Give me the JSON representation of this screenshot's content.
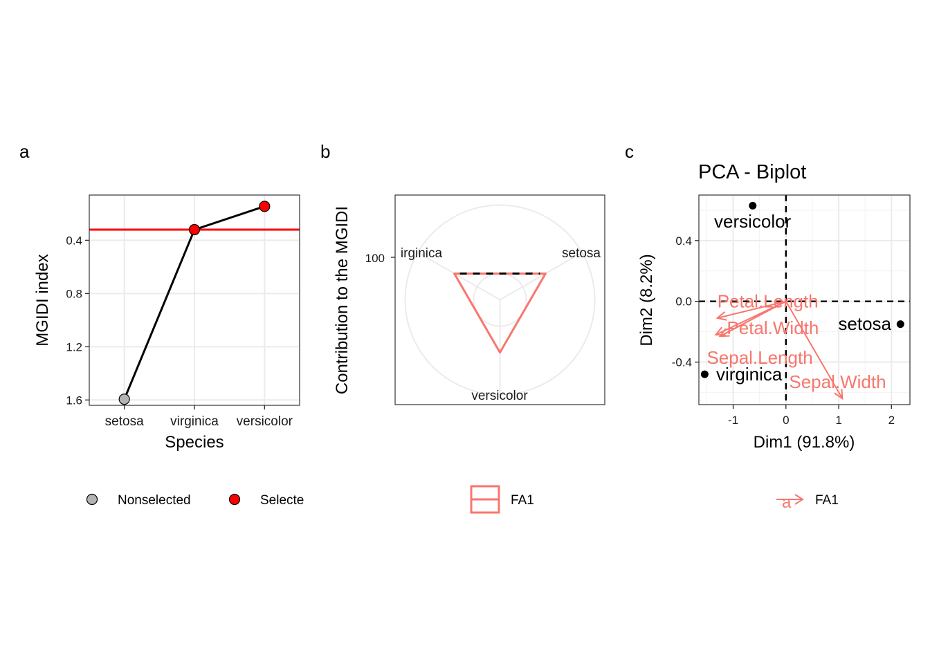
{
  "panels": {
    "a": {
      "letter": "a"
    },
    "b": {
      "letter": "b"
    },
    "c": {
      "letter": "c"
    }
  },
  "chart_data": [
    {
      "type": "line",
      "panel": "a",
      "xlabel": "Species",
      "ylabel": "MGIDI index",
      "categories": [
        "setosa",
        "virginica",
        "versicolor"
      ],
      "values": [
        1.594,
        0.32,
        0.145
      ],
      "status": [
        "Nonselected",
        "Selected",
        "Selected"
      ],
      "y_reversed": true,
      "ylim": [
        1.64,
        0.06
      ],
      "yticks": [
        0.4,
        0.8,
        1.2,
        1.6
      ],
      "ytick_labels": [
        "0.4",
        "0.8",
        "1.2",
        "1.6"
      ],
      "cutoff": 0.32,
      "legend": {
        "position": "bottom",
        "items": [
          {
            "label": "Nonselected",
            "color": "#b3b3b3"
          },
          {
            "label": "Selecte",
            "color": "#ff0000"
          }
        ]
      },
      "colors": {
        "line": "#000000",
        "cutoff": "#ff0000",
        "nonselected": "#b3b3b3",
        "selected": "#ff0000"
      }
    },
    {
      "type": "radar",
      "panel": "b",
      "ylabel": "Contribution to the MGIDI",
      "axes": [
        "setosa",
        "versicolor",
        "virginica"
      ],
      "axis_labels": [
        "setosa",
        "versicolor",
        "irginica"
      ],
      "series": [
        {
          "name": "FA1",
          "values": [
            100,
            100,
            100
          ]
        }
      ],
      "rmax": 180,
      "circle_levels": [
        50,
        180
      ],
      "radial_tick": 100,
      "radial_tick_label": "100",
      "legend": {
        "position": "bottom",
        "items": [
          {
            "label": "FA1",
            "color": "#f8766d"
          }
        ]
      },
      "colors": {
        "series": "#f8766d",
        "dashed": "#000000"
      }
    },
    {
      "type": "scatter",
      "panel": "c",
      "title": "PCA - Biplot",
      "xlabel": "Dim1 (91.8%)",
      "ylabel": "Dim2 (8.2%)",
      "xlim": [
        -1.65,
        2.35
      ],
      "ylim": [
        -0.68,
        0.7
      ],
      "xticks": [
        -1,
        0,
        1,
        2
      ],
      "xtick_labels": [
        "-1",
        "0",
        "1",
        "2"
      ],
      "yticks": [
        -0.4,
        0.0,
        0.4
      ],
      "ytick_labels": [
        "-0.4",
        "0.0",
        "0.4"
      ],
      "points": [
        {
          "label": "versicolor",
          "x": -0.63,
          "y": 0.63
        },
        {
          "label": "setosa",
          "x": 2.17,
          "y": -0.15
        },
        {
          "label": "virginica",
          "x": -1.54,
          "y": -0.48
        }
      ],
      "vectors": [
        {
          "label": "Petal.Length",
          "x": -1.3,
          "y": -0.11
        },
        {
          "label": "Petal.Width",
          "x": -1.25,
          "y": -0.23
        },
        {
          "label": "Sepal.Length",
          "x": -1.33,
          "y": -0.22
        },
        {
          "label": "Sepal.Width",
          "x": 1.07,
          "y": -0.64
        }
      ],
      "legend": {
        "position": "bottom",
        "items": [
          {
            "label": "FA1",
            "color": "#f8766d"
          }
        ]
      },
      "colors": {
        "points": "#000000",
        "vectors": "#f8766d"
      }
    }
  ]
}
